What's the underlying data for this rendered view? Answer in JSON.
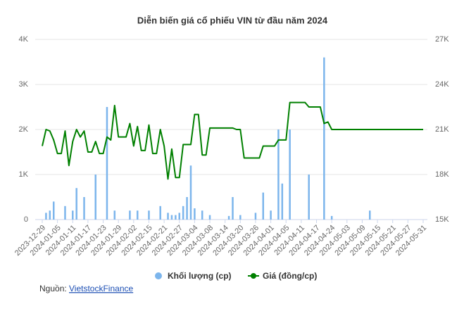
{
  "chart_data": {
    "type": "bar-line",
    "title": "Diễn biến giá cổ phiếu VIN từ đầu năm 2024",
    "categories": [
      "2023-12-29",
      null,
      null,
      null,
      "2024-01-05",
      null,
      null,
      null,
      "2024-01-11",
      null,
      null,
      null,
      "2024-01-17",
      null,
      null,
      null,
      "2024-01-23",
      null,
      null,
      null,
      "2024-01-29",
      null,
      null,
      null,
      "2024-02-02",
      null,
      null,
      null,
      "2024-02-15",
      null,
      null,
      null,
      "2024-02-21",
      null,
      null,
      null,
      "2024-02-27",
      null,
      null,
      null,
      "2024-03-04",
      null,
      null,
      null,
      "2024-03-08",
      null,
      null,
      null,
      "2024-03-14",
      null,
      null,
      null,
      "2024-03-20",
      null,
      null,
      null,
      "2024-03-26",
      null,
      null,
      null,
      "2024-04-01",
      null,
      null,
      null,
      "2024-04-05",
      null,
      null,
      null,
      "2024-04-11",
      null,
      null,
      null,
      "2024-04-17",
      null,
      null,
      null,
      "2024-04-24",
      null,
      null,
      null,
      "2024-05-03",
      null,
      null,
      null,
      "2024-05-09",
      null,
      null,
      null,
      "2024-05-15",
      null,
      null,
      null,
      "2024-05-21",
      null,
      null,
      null,
      "2024-05-27",
      null,
      null,
      null,
      "2024-05-31"
    ],
    "series": [
      {
        "name": "Khối lượng (cp)",
        "color": "#7cb5ec",
        "kind": "bar",
        "axis": "y",
        "values": [
          0,
          150,
          200,
          400,
          0,
          0,
          300,
          0,
          200,
          700,
          0,
          500,
          0,
          0,
          1000,
          0,
          0,
          2500,
          0,
          200,
          0,
          0,
          0,
          200,
          0,
          200,
          0,
          0,
          200,
          0,
          0,
          300,
          0,
          150,
          100,
          100,
          150,
          300,
          500,
          1200,
          250,
          0,
          200,
          0,
          100,
          0,
          0,
          0,
          0,
          80,
          500,
          0,
          100,
          0,
          0,
          0,
          150,
          0,
          600,
          0,
          200,
          0,
          2000,
          800,
          0,
          2000,
          0,
          0,
          0,
          0,
          1000,
          0,
          0,
          0,
          3600,
          0,
          80,
          0,
          0,
          0,
          0,
          0,
          0,
          0,
          0,
          0,
          200,
          0,
          0,
          0,
          0,
          0,
          0,
          0,
          0,
          0,
          0,
          0,
          0,
          0,
          0
        ]
      },
      {
        "name": "Giá (đồng/cp)",
        "color": "#008000",
        "kind": "line",
        "axis": "y2",
        "values": [
          19900,
          21000,
          20900,
          20300,
          19400,
          19400,
          20900,
          18600,
          20200,
          21000,
          20500,
          20900,
          19500,
          19500,
          20200,
          19400,
          19400,
          20500,
          20300,
          22600,
          20500,
          20500,
          20500,
          21400,
          19900,
          21200,
          19600,
          19600,
          21300,
          19400,
          19400,
          21000,
          19900,
          17700,
          19700,
          17800,
          17800,
          20000,
          20000,
          20000,
          22000,
          22000,
          19300,
          19300,
          21100,
          21100,
          21100,
          21100,
          21100,
          21100,
          21100,
          21000,
          21000,
          19100,
          19100,
          19100,
          19100,
          19100,
          19900,
          19900,
          19900,
          19900,
          20300,
          20300,
          20300,
          22800,
          22800,
          22800,
          22800,
          22800,
          22500,
          22500,
          22500,
          22500,
          21400,
          21500,
          21000,
          21000,
          21000,
          21000,
          21000,
          21000,
          21000,
          21000,
          21000,
          21000,
          21000,
          21000,
          21000,
          21000,
          21000,
          21000,
          21000,
          21000,
          21000,
          21000,
          21000,
          21000,
          21000,
          21000,
          21000
        ]
      }
    ],
    "ylim": [
      0,
      4000
    ],
    "yticks": [
      0,
      {
        "value": 1000,
        "label": "1K"
      },
      {
        "value": 2000,
        "label": "2K"
      },
      {
        "value": 3000,
        "label": "3K"
      },
      {
        "value": 4000,
        "label": "4K"
      }
    ],
    "y2lim": [
      15000,
      27000
    ],
    "y2ticks": [
      {
        "value": 15000,
        "label": "15K"
      },
      {
        "value": 18000,
        "label": "18K"
      },
      {
        "value": 21000,
        "label": "21K"
      },
      {
        "value": 24000,
        "label": "24K"
      },
      {
        "value": 27000,
        "label": "27K"
      }
    ],
    "grid": true,
    "legend": "bottom",
    "source_prefix": "Nguồn:",
    "source": "VietstockFinance"
  }
}
